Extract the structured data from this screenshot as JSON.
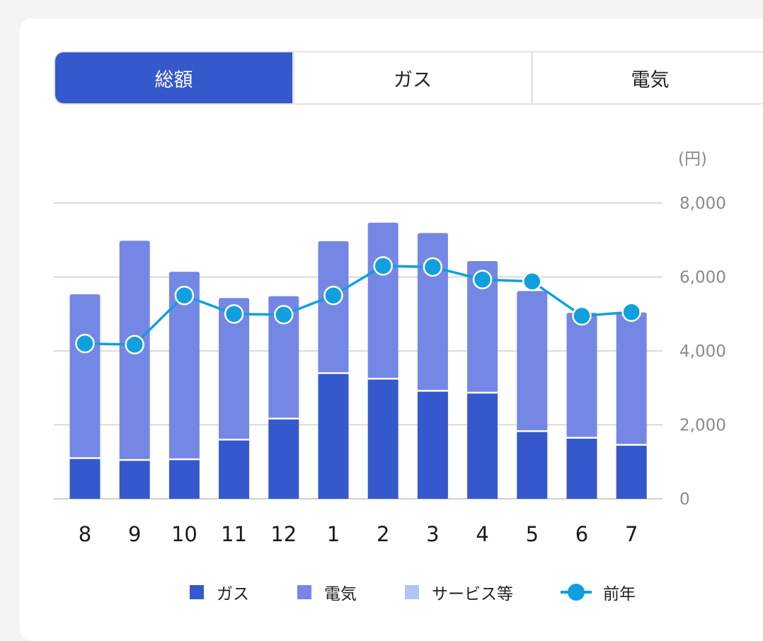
{
  "tabs": [
    {
      "label": "総額",
      "active": true
    },
    {
      "label": "ガス",
      "active": false
    },
    {
      "label": "電気",
      "active": false
    }
  ],
  "colors": {
    "gas": "#3558cc",
    "electric": "#7587e4",
    "service": "#b3c3f7",
    "previous_year": "#109fdf",
    "grid": "#cfcfcf",
    "axis_text": "#8a8a8a"
  },
  "legend": {
    "gas": "ガス",
    "electric": "電気",
    "service": "サービス等",
    "previous_year": "前年"
  },
  "chart_data": {
    "type": "bar",
    "stacked": true,
    "categories": [
      "8",
      "9",
      "10",
      "11",
      "12",
      "1",
      "2",
      "3",
      "4",
      "5",
      "6",
      "7"
    ],
    "series": [
      {
        "name": "ガス",
        "type": "bar",
        "values": [
          1100,
          1050,
          1070,
          1600,
          2170,
          3400,
          3250,
          2920,
          2870,
          1830,
          1650,
          1460
        ]
      },
      {
        "name": "電気",
        "type": "bar",
        "values": [
          4430,
          5930,
          5070,
          3830,
          3310,
          3570,
          4220,
          4270,
          3560,
          3790,
          3380,
          3580
        ]
      },
      {
        "name": "サービス等",
        "type": "bar",
        "values": [
          0,
          0,
          0,
          0,
          0,
          0,
          0,
          0,
          0,
          0,
          0,
          0
        ]
      },
      {
        "name": "前年",
        "type": "line",
        "values": [
          4200,
          4170,
          5500,
          5000,
          4980,
          5500,
          6300,
          6270,
          5930,
          5880,
          4950,
          5050
        ]
      }
    ],
    "unit_label": "(円)",
    "yticks": [
      "0",
      "2,000",
      "4,000",
      "6,000",
      "8,000"
    ],
    "ylim": [
      0,
      8000
    ],
    "y_axis_side": "right",
    "grid": true,
    "legend_position": "bottom"
  }
}
